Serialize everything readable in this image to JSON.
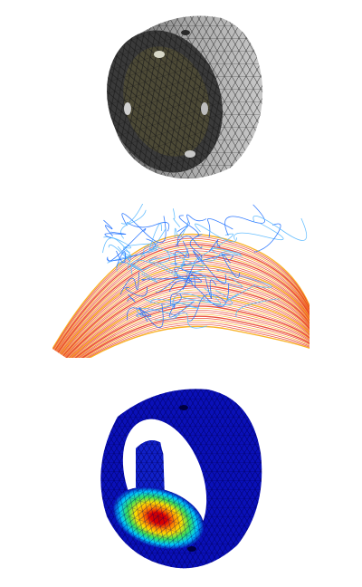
{
  "figure": {
    "panels": [
      {
        "subject": "meshed-cylinder-part",
        "visual": "grey-surface-mesh-with-olive-face",
        "colors": {
          "shell": "#8c8c8c",
          "rim": "#3a3a3a",
          "face": "#4d4a36",
          "mesh_line": "#151515"
        }
      },
      {
        "subject": "fluid-streamlines",
        "visual": "orange-red-and-blue-streamlines",
        "colors": {
          "warm_a": "#f7a400",
          "warm_b": "#e8321a",
          "cool_a": "#1f6fff",
          "cool_b": "#58b8ff"
        }
      },
      {
        "subject": "stress-contour-ring",
        "visual": "blue-to-red-fea-contour",
        "colors": {
          "low": "#0a10b8",
          "mid_a": "#00c8ff",
          "mid_b": "#38e05a",
          "mid_c": "#ffe000",
          "high": "#e00000"
        }
      }
    ]
  }
}
